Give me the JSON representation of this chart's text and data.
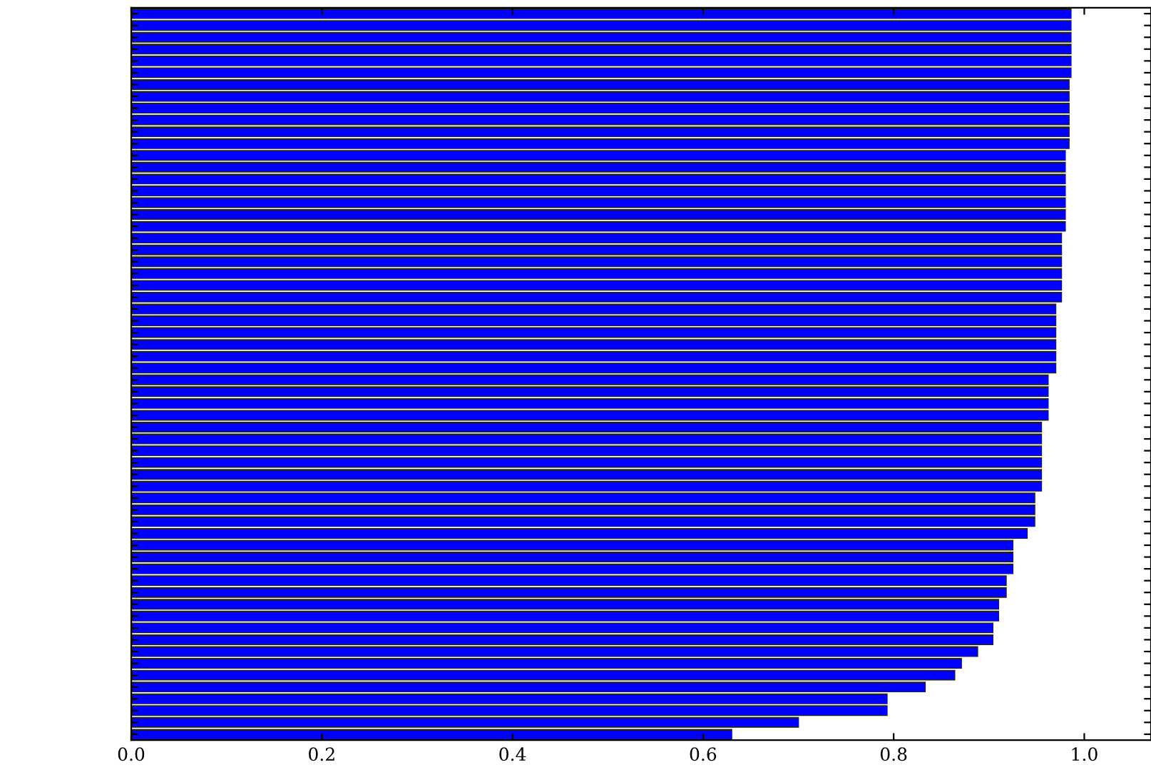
{
  "chart_data": {
    "type": "bar",
    "orientation": "horizontal",
    "categories": [
      null,
      null,
      null,
      null,
      null,
      null,
      null,
      null,
      null,
      null,
      null,
      null,
      null,
      null,
      null,
      null,
      null,
      null,
      null,
      null,
      null,
      null,
      null,
      null,
      null,
      null,
      null,
      null,
      null,
      null,
      null,
      null,
      null,
      null,
      null,
      null,
      null,
      null,
      null,
      null,
      null,
      null,
      null,
      null,
      null,
      null,
      null,
      null,
      null,
      null,
      null,
      null,
      null,
      null,
      null,
      null,
      null,
      null,
      null,
      null,
      null,
      null
    ],
    "values": [
      0.986,
      0.986,
      0.986,
      0.986,
      0.986,
      0.986,
      0.984,
      0.984,
      0.984,
      0.984,
      0.984,
      0.984,
      0.98,
      0.98,
      0.98,
      0.98,
      0.98,
      0.98,
      0.98,
      0.976,
      0.976,
      0.976,
      0.976,
      0.976,
      0.976,
      0.97,
      0.97,
      0.97,
      0.97,
      0.97,
      0.97,
      0.962,
      0.962,
      0.962,
      0.962,
      0.955,
      0.955,
      0.955,
      0.955,
      0.955,
      0.955,
      0.948,
      0.948,
      0.948,
      0.94,
      0.925,
      0.925,
      0.925,
      0.918,
      0.918,
      0.91,
      0.91,
      0.904,
      0.904,
      0.888,
      0.871,
      0.864,
      0.833,
      0.793,
      0.793,
      0.7,
      0.63
    ],
    "color": "#0000ff",
    "xlim": [
      0,
      1.07
    ],
    "xticks": [
      {
        "value": 0,
        "label": "0.0"
      },
      0.2,
      0.4,
      0.6,
      0.8,
      {
        "value": 1,
        "label": "1.0"
      }
    ],
    "tick_labels": "x",
    "grid": false
  }
}
